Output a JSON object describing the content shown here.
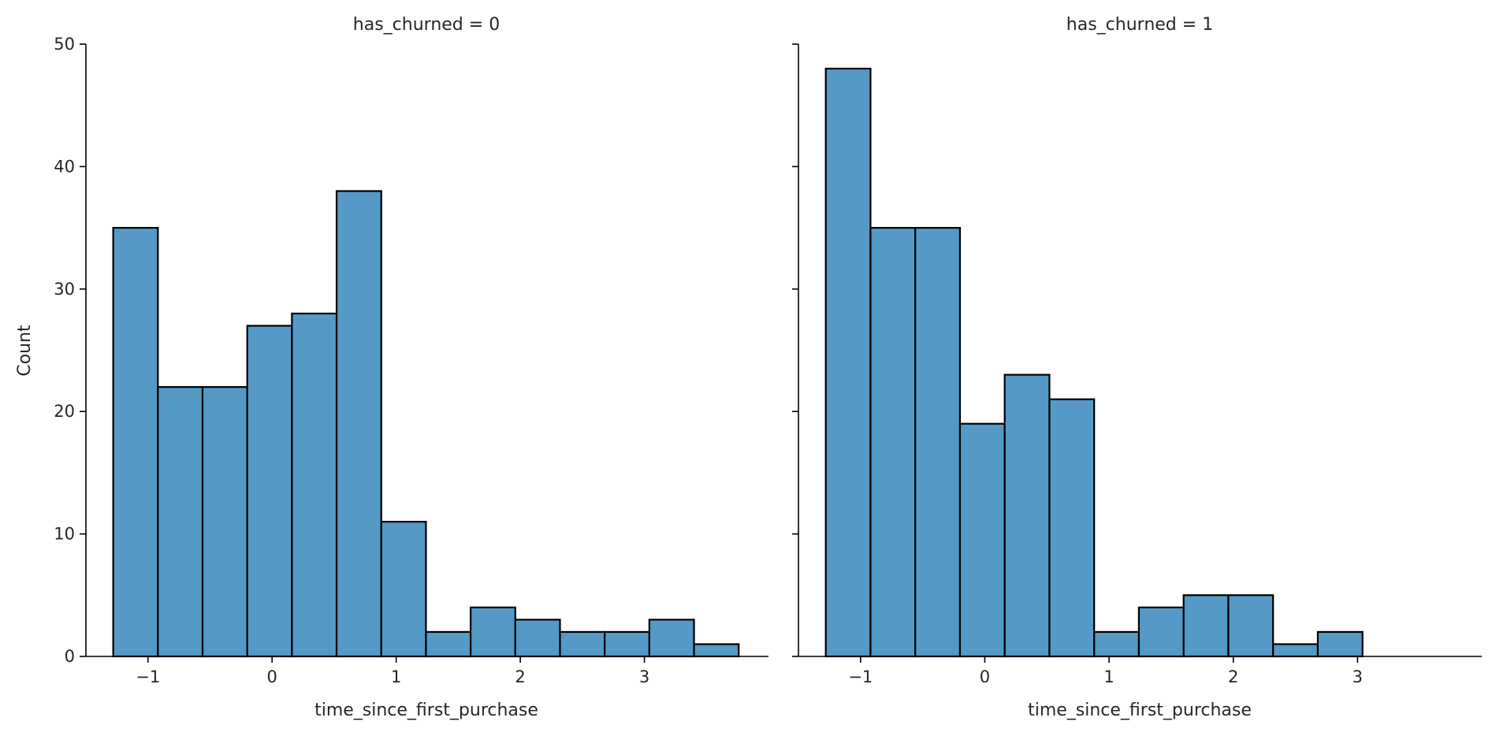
{
  "chart_data": {
    "type": "bar",
    "bar_color": "#5599c7",
    "edge_color": "#000000",
    "ylabel": "Count",
    "ylim": [
      0,
      50
    ],
    "yticks": [
      0,
      10,
      20,
      30,
      40,
      50
    ],
    "xlim": [
      -1.5,
      4.0
    ],
    "xticks": [
      -1,
      0,
      1,
      2,
      3
    ],
    "xtick_labels": [
      "−1",
      "0",
      "1",
      "2",
      "3"
    ],
    "grid": false,
    "bin_edges": [
      -1.28,
      -0.92,
      -0.56,
      -0.2,
      0.16,
      0.52,
      0.88,
      1.24,
      1.6,
      1.96,
      2.32,
      2.68,
      3.04,
      3.4,
      3.76
    ],
    "panels": [
      {
        "title": "has_churned = 0",
        "xlabel": "time_since_first_purchase",
        "values": [
          35,
          22,
          22,
          27,
          28,
          38,
          11,
          2,
          4,
          3,
          2,
          2,
          3,
          1
        ]
      },
      {
        "title": "has_churned = 1",
        "xlabel": "time_since_first_purchase",
        "values": [
          48,
          35,
          35,
          19,
          23,
          21,
          2,
          4,
          5,
          5,
          1,
          2,
          0,
          0
        ]
      }
    ]
  }
}
